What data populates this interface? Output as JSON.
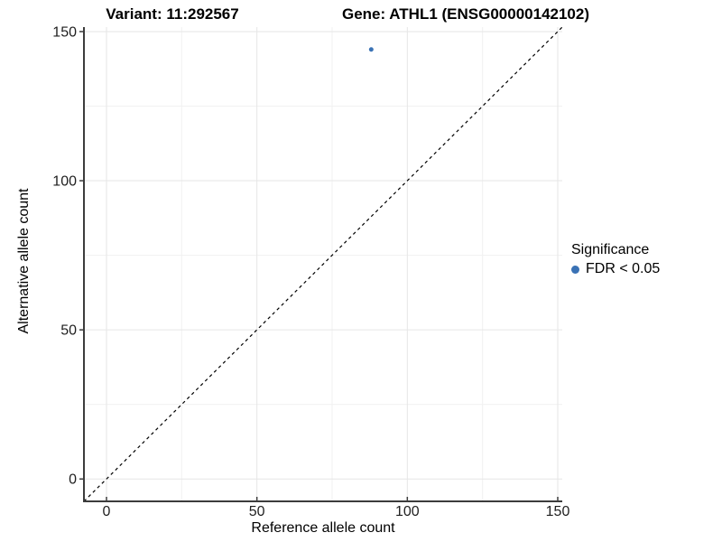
{
  "titles": {
    "variant": "Variant: 11:292567",
    "gene": "Gene: ATHL1 (ENSG00000142102)"
  },
  "axes": {
    "x_label": "Reference allele count",
    "y_label": "Alternative allele count"
  },
  "legend": {
    "title": "Significance",
    "entries": [
      {
        "label": "FDR < 0.05",
        "color": "#3a72b5",
        "shape": "circle"
      }
    ]
  },
  "colors": {
    "significant_point": "#3a72b5",
    "reference_line": "#000000",
    "axis_line": "#3c3c3c",
    "tick_label": "#1f1f1f",
    "grid_major": "#e6e6e6",
    "grid_minor": "#f1f1f1",
    "background": "#ffffff"
  },
  "chart_data": {
    "type": "scatter",
    "title": "Variant: 11:292567    Gene: ATHL1 (ENSG00000142102)",
    "xlabel": "Reference allele count",
    "ylabel": "Alternative allele count",
    "xlim": [
      -7.5,
      151.5
    ],
    "ylim": [
      -7.5,
      151.5
    ],
    "xticks": [
      0,
      50,
      100,
      150
    ],
    "yticks": [
      0,
      50,
      100,
      150
    ],
    "xticks_minor": [
      25,
      75,
      125
    ],
    "yticks_minor": [
      25,
      75,
      125
    ],
    "grid": true,
    "legend_position": "right",
    "series": [
      {
        "name": "FDR < 0.05",
        "color": "#3a72b5",
        "points": [
          {
            "x": 88,
            "y": 144
          }
        ]
      }
    ],
    "reference_line": {
      "kind": "identity",
      "slope": 1,
      "intercept": 0,
      "style": "dashed",
      "color": "#000000"
    }
  }
}
